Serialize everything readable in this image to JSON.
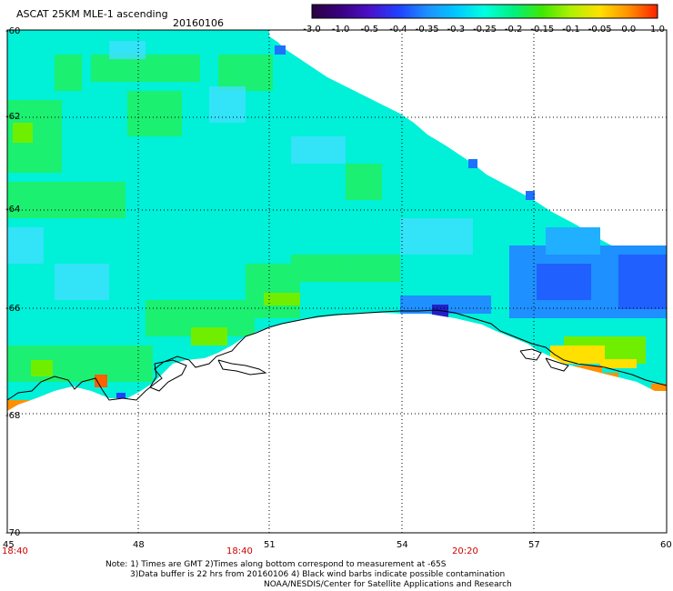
{
  "header": {
    "title": "ASCAT 25KM MLE-1 ascending",
    "date": "20160106"
  },
  "colorbar": {
    "tick_labels": [
      "-3.0",
      "-1.0",
      "-0.5",
      "-0.4",
      "-0.35",
      "-0.3",
      "-0.25",
      "-0.2",
      "-0.15",
      "-0.1",
      "-0.05",
      "0.0",
      "1.0"
    ],
    "colors": [
      "#2a0040",
      "#3a0080",
      "#4b10c8",
      "#2040ff",
      "#1e90ff",
      "#00c8ff",
      "#00ffe0",
      "#00f080",
      "#40e800",
      "#b0f000",
      "#ffe000",
      "#ff9000",
      "#ff2000"
    ]
  },
  "axes": {
    "lat_labels": [
      "-60",
      "-62",
      "-64",
      "-66",
      "-68",
      "-70"
    ],
    "lon_labels": [
      "45",
      "48",
      "51",
      "54",
      "57",
      "60"
    ],
    "time_labels": [
      "18:40",
      "18:40",
      "20:20"
    ]
  },
  "notes": {
    "line1": "Note: 1) Times are GMT 2)Times along bottom correspond to measurement at -65S",
    "line2": "3)Data buffer is 22 hrs from 20160106 4) Black wind barbs indicate possible contamination",
    "line3": "NOAA/NESDIS/Center for Satellite Applications and Research"
  },
  "colors": {
    "ocean_main": "#00f0d8",
    "land": "#ffffff",
    "coast": "#000000",
    "grid": "#000000",
    "time_label": "#cc0000"
  }
}
